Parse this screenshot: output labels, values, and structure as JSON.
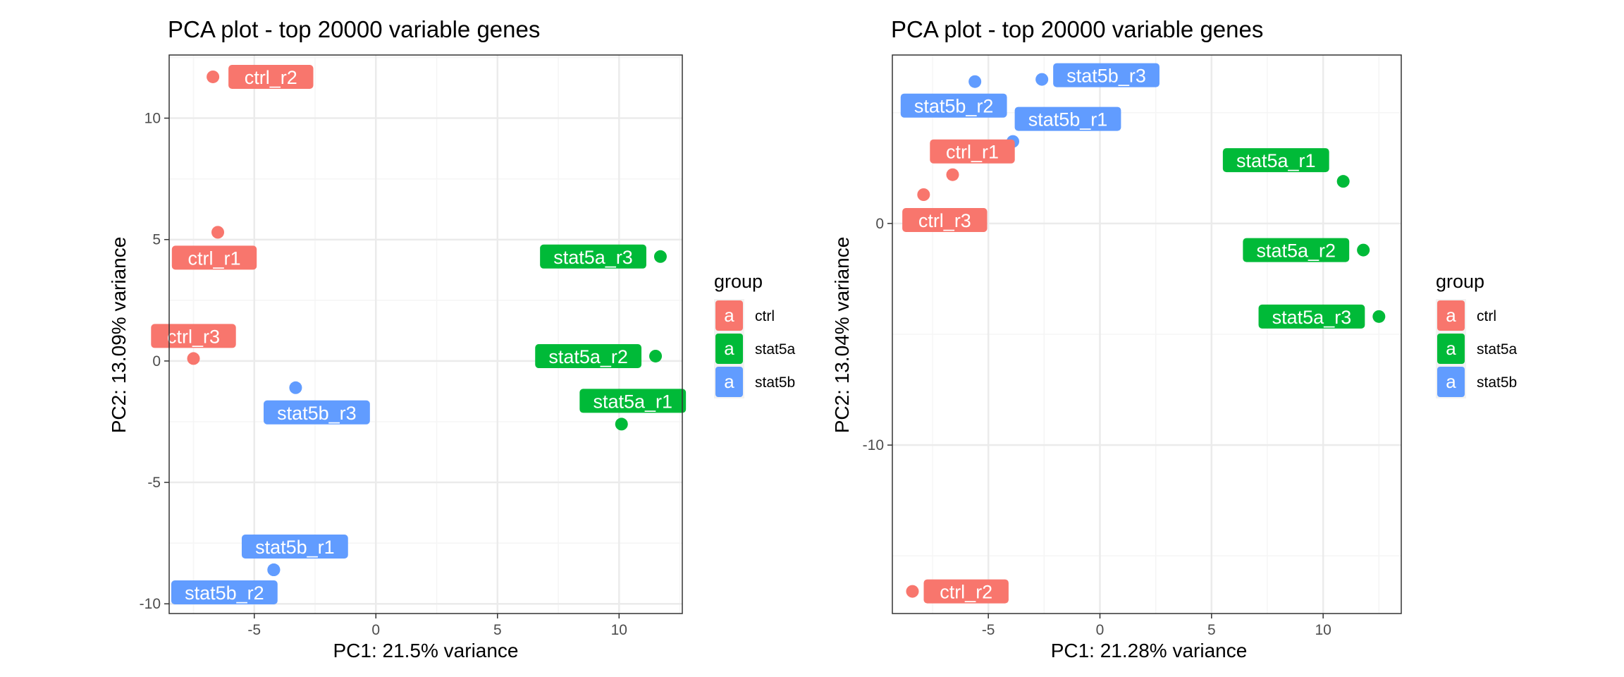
{
  "colors": {
    "ctrl": "#F8766D",
    "stat5a": "#00BA38",
    "stat5b": "#619CFF",
    "grid_major": "#EBEBEB",
    "grid_minor": "#F5F5F5",
    "panel_border": "#333333",
    "text": "#000000",
    "tick_text": "#4D4D4D"
  },
  "legend": {
    "title": "group",
    "key_glyph": "a",
    "entries": [
      {
        "group": "ctrl",
        "label": "ctrl"
      },
      {
        "group": "stat5a",
        "label": "stat5a"
      },
      {
        "group": "stat5b",
        "label": "stat5b"
      }
    ]
  },
  "chart_data": [
    {
      "type": "scatter",
      "title": "PCA plot - top 20000 variable genes",
      "xlabel": "PC1: 21.5% variance",
      "ylabel": "PC2: 13.09% variance",
      "xlim": [
        -8.5,
        12.6
      ],
      "ylim": [
        -10.4,
        12.6
      ],
      "xticks": [
        -5,
        0,
        5,
        10
      ],
      "yticks": [
        -10,
        -5,
        0,
        5,
        10
      ],
      "xtick_labels": [
        "-5",
        "0",
        "5",
        "10"
      ],
      "ytick_labels": [
        "-10",
        "-5",
        "0",
        "5",
        "10"
      ],
      "grid": true,
      "legend_position": "right",
      "points": [
        {
          "label": "ctrl_r2",
          "group": "ctrl",
          "x": -6.7,
          "y": 11.7
        },
        {
          "label": "ctrl_r1",
          "group": "ctrl",
          "x": -6.5,
          "y": 5.3
        },
        {
          "label": "ctrl_r3",
          "group": "ctrl",
          "x": -7.5,
          "y": 0.1
        },
        {
          "label": "stat5a_r3",
          "group": "stat5a",
          "x": 11.7,
          "y": 4.3
        },
        {
          "label": "stat5a_r2",
          "group": "stat5a",
          "x": 11.5,
          "y": 0.2
        },
        {
          "label": "stat5a_r1",
          "group": "stat5a",
          "x": 10.1,
          "y": -2.6
        },
        {
          "label": "stat5b_r3",
          "group": "stat5b",
          "x": -3.3,
          "y": -1.1
        },
        {
          "label": "stat5b_r1",
          "group": "stat5b",
          "x": -4.2,
          "y": -8.6
        },
        {
          "label": "stat5b_r2",
          "group": "stat5b",
          "x": -4.2,
          "y": -8.6
        }
      ]
    },
    {
      "type": "scatter",
      "title": "PCA plot - top 20000 variable genes",
      "xlabel": "PC1: 21.28% variance",
      "ylabel": "PC2: 13.04% variance",
      "xlim": [
        -9.3,
        13.5
      ],
      "ylim": [
        -17.6,
        7.6
      ],
      "xticks": [
        -5,
        0,
        5,
        10
      ],
      "yticks": [
        -10,
        0
      ],
      "xtick_labels": [
        "-5",
        "0",
        "5",
        "10"
      ],
      "ytick_labels": [
        "-10",
        "0"
      ],
      "grid": true,
      "legend_position": "right",
      "points": [
        {
          "label": "stat5b_r2",
          "group": "stat5b",
          "x": -5.6,
          "y": 6.4
        },
        {
          "label": "stat5b_r3",
          "group": "stat5b",
          "x": -2.6,
          "y": 6.5
        },
        {
          "label": "stat5b_r1",
          "group": "stat5b",
          "x": -3.9,
          "y": 3.7
        },
        {
          "label": "ctrl_r1",
          "group": "ctrl",
          "x": -6.6,
          "y": 2.2
        },
        {
          "label": "ctrl_r3",
          "group": "ctrl",
          "x": -7.9,
          "y": 1.3
        },
        {
          "label": "stat5a_r1",
          "group": "stat5a",
          "x": 10.9,
          "y": 1.9
        },
        {
          "label": "stat5a_r2",
          "group": "stat5a",
          "x": 11.8,
          "y": -1.2
        },
        {
          "label": "stat5a_r3",
          "group": "stat5a",
          "x": 12.5,
          "y": -4.2
        },
        {
          "label": "ctrl_r2",
          "group": "ctrl",
          "x": -8.4,
          "y": -16.6
        }
      ]
    }
  ]
}
